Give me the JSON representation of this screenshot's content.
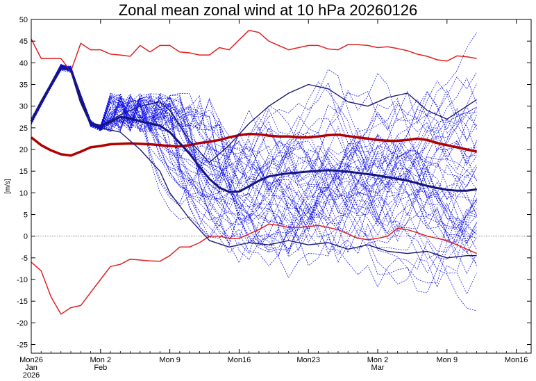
{
  "chart_data": {
    "type": "line",
    "title": "Zonal mean zonal wind at 10 hPa 20260126",
    "ylabel": "[m/s]",
    "xlabel": "",
    "ylim": [
      -27,
      50
    ],
    "xlim": [
      0,
      50.5
    ],
    "grid": false,
    "legend": "none",
    "zero_line": {
      "y": 0,
      "style": "dotted"
    },
    "y_ticks": [
      -25,
      -20,
      -15,
      -10,
      -5,
      0,
      5,
      10,
      15,
      20,
      25,
      30,
      35,
      40,
      45,
      50
    ],
    "x_ticks": [
      {
        "x": 0,
        "lines": [
          "Mon26",
          "Jan",
          "2026"
        ]
      },
      {
        "x": 7,
        "lines": [
          "Mon 2",
          "Feb"
        ]
      },
      {
        "x": 14,
        "lines": [
          "Mon 9"
        ]
      },
      {
        "x": 21,
        "lines": [
          "Mon16"
        ]
      },
      {
        "x": 28,
        "lines": [
          "Mon23"
        ]
      },
      {
        "x": 35,
        "lines": [
          "Mon 2",
          "Mar"
        ]
      },
      {
        "x": 42,
        "lines": [
          "Mon 9"
        ]
      },
      {
        "x": 49,
        "lines": [
          "Mon16"
        ]
      }
    ],
    "ensemble": {
      "name": "ensemble members",
      "color": "#0000ee",
      "count": 51,
      "x_start": 0,
      "x_end": 45,
      "initial_path": {
        "x": [
          0,
          3,
          4,
          6,
          7
        ],
        "y": [
          26.5,
          39,
          38.5,
          26,
          25
        ]
      },
      "early_spread_range": [
        24,
        33
      ],
      "late_range": [
        -24,
        47
      ]
    },
    "series": [
      {
        "name": "climatology max",
        "color": "#e02020",
        "width": 1.5,
        "x": [
          0,
          1,
          2,
          3,
          4,
          5,
          6,
          7,
          8,
          9,
          10,
          11,
          12,
          13,
          14,
          15,
          16,
          17,
          18,
          19,
          20,
          21,
          22,
          23,
          24,
          25,
          26,
          27,
          28,
          29,
          30,
          31,
          32,
          33,
          34,
          35,
          36,
          37,
          38,
          39,
          40,
          41,
          42,
          43,
          44,
          45
        ],
        "y": [
          45.5,
          41,
          41,
          41,
          38,
          44.5,
          43,
          43,
          42,
          41.8,
          41.5,
          44,
          42.5,
          44,
          44,
          42.5,
          42.3,
          41.8,
          41.8,
          43.5,
          43,
          45.3,
          47.5,
          47,
          45,
          44,
          43,
          43.5,
          44,
          44,
          43.2,
          43,
          44.2,
          44.2,
          44,
          43.5,
          43.7,
          43.3,
          42.8,
          42,
          41.5,
          40.7,
          40.4,
          41.6,
          41.4,
          41
        ]
      },
      {
        "name": "climatology min",
        "color": "#e02020",
        "width": 1.5,
        "x": [
          0,
          1,
          2,
          3,
          4,
          5,
          6,
          7,
          8,
          9,
          10,
          11,
          12,
          13,
          14,
          15,
          16,
          17,
          18,
          19,
          20,
          21,
          22,
          23,
          24,
          25,
          26,
          27,
          28,
          29,
          30,
          31,
          32,
          33,
          34,
          35,
          36,
          37,
          38,
          39,
          40,
          41,
          42,
          43,
          44,
          45
        ],
        "y": [
          -6,
          -8,
          -14,
          -18,
          -16.5,
          -16,
          -13,
          -10,
          -7,
          -6.5,
          -5.3,
          -5.5,
          -5.7,
          -5.8,
          -4.5,
          -2.5,
          -2.5,
          -1.5,
          0,
          0,
          -0.5,
          -0.5,
          0.5,
          1.5,
          2.8,
          2.5,
          2,
          2,
          2.2,
          2.5,
          2,
          1.5,
          0.5,
          -0.5,
          -0.8,
          -0.5,
          0,
          1.8,
          1.5,
          0.8,
          0,
          -0.5,
          -1,
          -2,
          -3,
          -4
        ]
      },
      {
        "name": "climatology mean",
        "color": "#b00000",
        "width": 3.5,
        "x": [
          0,
          1,
          2,
          3,
          4,
          5,
          6,
          7,
          8,
          9,
          10,
          11,
          12,
          13,
          14,
          15,
          16,
          17,
          18,
          19,
          20,
          21,
          22,
          23,
          24,
          25,
          26,
          27,
          28,
          29,
          30,
          31,
          32,
          33,
          34,
          35,
          36,
          37,
          38,
          39,
          40,
          41,
          42,
          43,
          44,
          45
        ],
        "y": [
          22.8,
          21,
          19.8,
          18.9,
          18.6,
          19.5,
          20.5,
          20.8,
          21.2,
          21.3,
          21.4,
          21.3,
          21.2,
          21,
          20.8,
          20.7,
          21,
          21.5,
          21.8,
          22.2,
          22.8,
          23.3,
          23.6,
          23.5,
          23.2,
          23,
          23,
          22.8,
          22.8,
          23,
          23.3,
          23.4,
          23.1,
          22.8,
          22.5,
          22.2,
          22,
          22,
          22.2,
          22.5,
          22.2,
          21.5,
          21,
          20.5,
          20,
          19.5
        ]
      },
      {
        "name": "ensemble mean",
        "color": "#15157a",
        "width": 3,
        "x": [
          0,
          1,
          2,
          3,
          4,
          5,
          6,
          7,
          8,
          9,
          10,
          11,
          12,
          13,
          14,
          15,
          16,
          17,
          18,
          19,
          20,
          21,
          22,
          23,
          24,
          25,
          26,
          27,
          28,
          29,
          30,
          31,
          32,
          33,
          34,
          35,
          36,
          37,
          38,
          39,
          40,
          41,
          42,
          43,
          44,
          45
        ],
        "y": [
          26.5,
          31,
          35,
          39,
          38.5,
          31,
          26,
          25.5,
          26.3,
          27.5,
          27.2,
          26.5,
          26,
          25.5,
          24,
          21.5,
          19,
          16,
          13.2,
          11.2,
          10.2,
          10.3,
          11.5,
          12.8,
          13.8,
          14.2,
          14.5,
          14.7,
          14.9,
          15.1,
          15.2,
          15.1,
          14.9,
          14.6,
          14.3,
          14,
          13.6,
          13.2,
          12.8,
          12.2,
          11.6,
          11.1,
          10.7,
          10.5,
          10.5,
          10.8
        ]
      },
      {
        "name": "member highlight 1",
        "color": "#1a1a70",
        "width": 1.4,
        "x": [
          0,
          3,
          4,
          6,
          7,
          9,
          11,
          13,
          14,
          16,
          18,
          20,
          22,
          24,
          26,
          28,
          30,
          32,
          34,
          36,
          38,
          40,
          42,
          44,
          45
        ],
        "y": [
          26.5,
          39,
          38.5,
          26,
          25.5,
          28,
          30,
          31,
          29,
          22,
          17,
          21,
          26,
          30,
          33,
          35,
          34,
          31,
          30,
          32,
          33,
          29,
          27,
          30,
          31.5
        ]
      },
      {
        "name": "member highlight 2",
        "color": "#1a1a70",
        "width": 1.4,
        "x": [
          0,
          3,
          4,
          6,
          7,
          9,
          11,
          13,
          14,
          16,
          18,
          20,
          22,
          24,
          26,
          28,
          30,
          32,
          34,
          36,
          38,
          40,
          42,
          44,
          45
        ],
        "y": [
          26.5,
          39,
          38.5,
          26,
          25,
          24,
          20,
          15,
          10,
          4,
          -1,
          -2.5,
          -1.5,
          -2,
          -1,
          -2,
          -1.5,
          -3,
          -2,
          -3.5,
          -4,
          -3.5,
          -5,
          -4.5,
          -4.5
        ]
      }
    ]
  }
}
